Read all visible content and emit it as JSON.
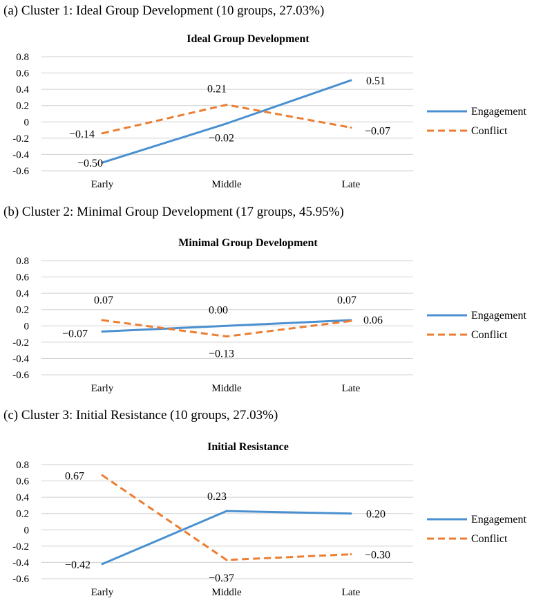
{
  "panels": [
    {
      "caption": "(a) Cluster 1: Ideal Group Development (10 groups, 27.03%)",
      "chart_data": {
        "type": "line",
        "title": "Ideal Group Development",
        "categories": [
          "Early",
          "Middle",
          "Late"
        ],
        "ylim": [
          -0.6,
          0.8
        ],
        "yticks": [
          "0.8",
          "0.6",
          "0.4",
          "0.2",
          "0",
          "-0.2",
          "-0.4",
          "-0.6"
        ],
        "grid": true,
        "legend": "right",
        "series": [
          {
            "name": "Engagement",
            "values": [
              -0.5,
              -0.02,
              0.51
            ],
            "labels": [
              "-0.50",
              "-0.02",
              "0.51"
            ],
            "color": "#4A90D0",
            "style": "solid"
          },
          {
            "name": "Conflict",
            "values": [
              -0.14,
              0.21,
              -0.07
            ],
            "labels": [
              "-0.14",
              "0.21",
              "-0.07"
            ],
            "color": "#ED7D31",
            "style": "dashed"
          }
        ]
      }
    },
    {
      "caption": "(b) Cluster 2: Minimal Group Development (17 groups, 45.95%)",
      "chart_data": {
        "type": "line",
        "title": "Minimal Group Development",
        "categories": [
          "Early",
          "Middle",
          "Late"
        ],
        "ylim": [
          -0.6,
          0.8
        ],
        "yticks": [
          "0.8",
          "0.6",
          "0.4",
          "0.2",
          "0",
          "-0.2",
          "-0.4",
          "-0.6"
        ],
        "grid": true,
        "legend": "right",
        "series": [
          {
            "name": "Engagement",
            "values": [
              -0.07,
              0.0,
              0.07
            ],
            "labels": [
              "-0.07",
              "0.00",
              "0.07"
            ],
            "color": "#4A90D0",
            "style": "solid"
          },
          {
            "name": "Conflict",
            "values": [
              0.07,
              -0.13,
              0.06
            ],
            "labels": [
              "0.07",
              "-0.13",
              "0.06"
            ],
            "color": "#ED7D31",
            "style": "dashed"
          }
        ]
      }
    },
    {
      "caption": "(c) Cluster 3: Initial Resistance (10 groups, 27.03%)",
      "chart_data": {
        "type": "line",
        "title": "Initial Resistance",
        "categories": [
          "Early",
          "Middle",
          "Late"
        ],
        "ylim": [
          -0.6,
          0.8
        ],
        "yticks": [
          "0.8",
          "0.6",
          "0.4",
          "0.2",
          "0",
          "-0.2",
          "-0.4",
          "-0.6"
        ],
        "grid": true,
        "legend": "right",
        "series": [
          {
            "name": "Engagement",
            "values": [
              -0.42,
              0.23,
              0.2
            ],
            "labels": [
              "-0.42",
              "0.23",
              "0.20"
            ],
            "color": "#4A90D0",
            "style": "solid"
          },
          {
            "name": "Conflict",
            "values": [
              0.67,
              -0.37,
              -0.3
            ],
            "labels": [
              "0.67",
              "-0.37",
              "-0.30"
            ],
            "color": "#ED7D31",
            "style": "dashed"
          }
        ]
      }
    }
  ]
}
